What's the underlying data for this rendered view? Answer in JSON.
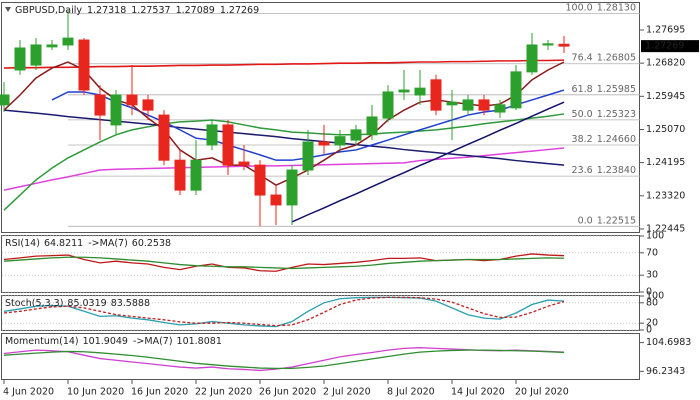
{
  "chart_data": [
    {
      "type": "candlestick",
      "title": "GBPUSD,Daily",
      "categories": [
        "4 Jun 2020",
        null,
        null,
        null,
        "10 Jun 2020",
        null,
        null,
        null,
        "16 Jun 2020",
        null,
        null,
        null,
        "22 Jun 2020",
        null,
        null,
        null,
        "26 Jun 2020",
        null,
        null,
        null,
        "2 Jul 2020",
        null,
        null,
        null,
        "8 Jul 2020",
        null,
        null,
        null,
        "14 Jul 2020",
        null,
        null,
        null,
        "20 Jul 2020",
        null,
        null,
        null
      ],
      "open": [
        1.2572,
        1.2664,
        1.2677,
        1.2725,
        1.273,
        1.2743,
        1.2598,
        1.2519,
        1.2598,
        1.2585,
        1.2545,
        1.2426,
        1.2347,
        1.2466,
        1.2519,
        1.2421,
        1.2413,
        1.2334,
        1.2308,
        1.24,
        1.2474,
        1.2466,
        1.2479,
        1.2493,
        1.2537,
        1.2606,
        1.2598,
        1.2638,
        1.2572,
        1.2558,
        1.2585,
        1.2553,
        1.2564,
        1.2659,
        1.273,
        1.27318
      ],
      "high": [
        1.2632,
        1.2743,
        1.2748,
        1.2743,
        1.2822,
        1.2748,
        1.2624,
        1.2611,
        1.2677,
        1.2598,
        1.2558,
        1.2453,
        1.2479,
        1.2532,
        1.2532,
        1.2466,
        1.2426,
        1.236,
        1.2413,
        1.2506,
        1.2519,
        1.2506,
        1.2519,
        1.2572,
        1.2624,
        1.2664,
        1.2664,
        1.2651,
        1.2611,
        1.2598,
        1.2598,
        1.2585,
        1.2677,
        1.2762,
        1.2743,
        1.27537
      ],
      "low": [
        1.2553,
        1.2651,
        1.2664,
        1.2717,
        1.2717,
        1.2598,
        1.2479,
        1.2493,
        1.2545,
        1.2532,
        1.2413,
        1.2334,
        1.2334,
        1.2453,
        1.2387,
        1.24,
        1.2252,
        1.2255,
        1.2255,
        1.2387,
        1.244,
        1.2453,
        1.2466,
        1.2479,
        1.2527,
        1.2585,
        1.2572,
        1.2545,
        1.2479,
        1.2545,
        1.2545,
        1.2537,
        1.2558,
        1.2651,
        1.2717,
        1.27089
      ],
      "close": [
        1.2598,
        1.2722,
        1.273,
        1.273,
        1.2748,
        1.2611,
        1.2545,
        1.2598,
        1.2572,
        1.2558,
        1.2426,
        1.2347,
        1.2426,
        1.2519,
        1.2413,
        1.2413,
        1.2334,
        1.2308,
        1.24,
        1.2474,
        1.2466,
        1.2488,
        1.2506,
        1.254,
        1.2606,
        1.2611,
        1.2616,
        1.2558,
        1.2579,
        1.2585,
        1.2558,
        1.2572,
        1.2659,
        1.273,
        1.2733,
        1.27269
      ],
      "up_color": "#2ca02c",
      "down_color": "#e8261e",
      "ylim": [
        1.22365,
        1.28407
      ],
      "yticks": [
        1.27695,
        {
          "value": 1.2682,
          "label": "1.26820"
        },
        1.25945,
        {
          "value": 1.2507,
          "label": "1.25070"
        },
        1.24195,
        {
          "value": 1.2332,
          "label": "1.23320"
        },
        1.22445
      ],
      "fib_levels": [
        {
          "ratio": "100.0",
          "price": {
            "value": 1.2813,
            "label": "1.28130"
          }
        },
        {
          "ratio": "76.4",
          "price": 1.26805
        },
        {
          "ratio": "61.8",
          "price": 1.25985
        },
        {
          "ratio": "50.0",
          "price": 1.25323
        },
        {
          "ratio": "38.2",
          "price": {
            "value": 1.2466,
            "label": "1.24660"
          }
        },
        {
          "ratio": "23.6",
          "price": {
            "value": 1.2384,
            "label": "1.23840"
          }
        },
        {
          "ratio": "0.0",
          "price": 1.22515
        }
      ],
      "series": [
        {
          "color": "#e01818",
          "values": [
            1.2669,
            1.267,
            1.267,
            1.2671,
            1.2671,
            1.2672,
            1.2673,
            1.2673,
            1.2674,
            1.2674,
            1.2675,
            1.2676,
            1.2676,
            1.2677,
            1.2677,
            1.2678,
            1.2679,
            1.2679,
            1.268,
            1.268,
            1.2681,
            1.2682,
            1.2682,
            1.2683,
            1.2683,
            1.2684,
            1.2685,
            1.2685,
            1.2686,
            1.2686,
            1.2687,
            1.2688,
            1.2688,
            1.2689,
            1.2689,
            1.269
          ]
        },
        {
          "color": "#e040e0",
          "values": [
            1.2347,
            1.2356,
            1.2365,
            1.2374,
            1.2382,
            1.2391,
            1.24,
            1.2402,
            1.2403,
            1.2404,
            1.2405,
            1.2406,
            1.2407,
            1.2408,
            1.2409,
            1.241,
            1.2411,
            1.2411,
            1.2412,
            1.2413,
            1.2414,
            1.2415,
            1.2416,
            1.2417,
            1.2418,
            1.2419,
            1.2425,
            1.2428,
            1.2431,
            1.2434,
            1.2438,
            1.2442,
            1.2446,
            1.245,
            1.2454,
            1.2458
          ]
        },
        {
          "color": "#2f9a3a",
          "values": [
            1.2294,
            1.2334,
            1.2374,
            1.2405,
            1.2432,
            1.2453,
            1.2474,
            1.2493,
            1.2506,
            1.2514,
            1.2522,
            1.2527,
            1.2529,
            1.2532,
            1.2527,
            1.2519,
            1.2511,
            1.2506,
            1.25,
            1.2498,
            1.2495,
            1.2493,
            1.2493,
            1.2495,
            1.2498,
            1.25,
            1.2503,
            1.2506,
            1.2511,
            1.2516,
            1.2522,
            1.2527,
            1.2532,
            1.2537,
            1.2542,
            1.2548
          ]
        },
        {
          "color": "#1a1a6e",
          "values": [
            1.2558,
            1.2554,
            1.255,
            1.2546,
            1.2541,
            1.2537,
            1.2533,
            1.2529,
            1.2525,
            1.2521,
            1.2517,
            1.2512,
            1.2508,
            1.2504,
            1.25,
            1.2496,
            1.2492,
            1.2488,
            1.2483,
            1.2479,
            1.2475,
            1.2471,
            1.2467,
            1.2463,
            1.2459,
            1.2454,
            1.245,
            1.2446,
            1.2442,
            1.2438,
            1.2434,
            1.243,
            1.2425,
            1.2421,
            1.2417,
            1.2413
          ]
        },
        {
          "color": "#1f3fd0",
          "values": [
            null,
            null,
            null,
            1.2585,
            1.2606,
            1.2606,
            1.2598,
            1.2579,
            1.2564,
            1.2545,
            1.2527,
            1.2506,
            1.2484,
            1.2479,
            1.2466,
            1.2453,
            1.244,
            1.2426,
            1.2426,
            1.2432,
            1.244,
            1.2448,
            1.2453,
            1.2466,
            1.2479,
            1.2493,
            1.2506,
            1.2519,
            1.2532,
            1.2545,
            1.2553,
            1.2558,
            1.2572,
            1.2585,
            1.2598,
            1.2611
          ]
        },
        {
          "color": "#8b1a1a",
          "values": [
            1.2558,
            1.2598,
            1.2643,
            1.2669,
            1.2685,
            1.2664,
            1.2616,
            1.2585,
            1.2572,
            1.2537,
            1.2506,
            1.2453,
            1.2426,
            1.2432,
            1.2413,
            1.2413,
            1.2387,
            1.236,
            1.2379,
            1.24,
            1.2426,
            1.2453,
            1.2466,
            1.2493,
            1.2532,
            1.2558,
            1.2579,
            1.2585,
            1.2579,
            1.2574,
            1.2569,
            1.2574,
            1.2598,
            1.2638,
            1.2664,
            1.2685
          ]
        },
        {
          "color": "#10106a",
          "values": [
            null,
            null,
            null,
            null,
            null,
            null,
            null,
            null,
            null,
            null,
            null,
            null,
            null,
            null,
            null,
            null,
            null,
            null,
            1.2263,
            1.2282,
            1.23,
            1.2319,
            1.2337,
            1.2356,
            1.2375,
            1.2393,
            1.2412,
            1.243,
            1.2449,
            1.2468,
            1.2486,
            1.2505,
            1.2523,
            1.2542,
            1.2561,
            1.2579
          ]
        }
      ]
    },
    {
      "type": "line",
      "ylim": [
        0,
        100
      ],
      "yticks": [
        0,
        30,
        70,
        100
      ],
      "grid": true,
      "series": [
        {
          "name": "RSI(14)",
          "color": "#c01818",
          "values": [
            58,
            61,
            64,
            65,
            66,
            58,
            52,
            55,
            52,
            50,
            44,
            40,
            46,
            50,
            44,
            43,
            38,
            37,
            44,
            50,
            49,
            51,
            53,
            56,
            60,
            60,
            61,
            56,
            57,
            58,
            56,
            58,
            64,
            68,
            66,
            64.8211
          ]
        },
        {
          "name": "->MA(7)",
          "color": "#2e8b2e",
          "values": [
            55,
            57,
            59,
            61,
            62,
            62,
            61,
            59,
            57,
            55,
            52,
            49,
            47,
            46,
            45,
            45,
            44,
            43,
            42,
            43,
            44,
            45,
            46,
            48,
            51,
            53,
            55,
            56,
            57,
            58,
            58,
            58,
            59,
            60,
            61,
            60.2538
          ]
        }
      ]
    },
    {
      "type": "line",
      "ylim": [
        0,
        100
      ],
      "yticks": [
        0,
        20,
        80,
        100
      ],
      "grid": true,
      "series": [
        {
          "name": "Stoch(5,3,3)",
          "color": "#2a9fb0",
          "values": [
            55,
            62,
            70,
            72,
            70,
            55,
            40,
            42,
            35,
            30,
            22,
            15,
            18,
            25,
            20,
            15,
            12,
            10,
            25,
            55,
            80,
            92,
            95,
            96,
            96,
            95,
            94,
            85,
            65,
            45,
            35,
            32,
            50,
            75,
            88,
            85.0319
          ]
        },
        {
          "color": "#c02020",
          "dash": true,
          "values": [
            50,
            55,
            62,
            68,
            70,
            65,
            55,
            45,
            40,
            35,
            30,
            24,
            20,
            20,
            22,
            20,
            16,
            13,
            15,
            30,
            52,
            75,
            88,
            94,
            96,
            96,
            95,
            91,
            82,
            65,
            48,
            37,
            38,
            52,
            70,
            83.5888
          ]
        }
      ]
    },
    {
      "type": "line",
      "ylim": [
        93.98,
        107.24
      ],
      "yticks": [
        96.2343,
        104.6983
      ],
      "grid": false,
      "series": [
        {
          "name": "Momentum(14)",
          "color": "#d040d0",
          "values": [
            101.5,
            102.0,
            102.5,
            102.3,
            102.0,
            101.0,
            100.0,
            99.5,
            99.0,
            98.5,
            98.0,
            97.5,
            97.2,
            97.5,
            97.0,
            96.8,
            96.5,
            96.9,
            97.5,
            98.5,
            99.5,
            100.5,
            101.2,
            101.8,
            102.5,
            103.0,
            103.2,
            103.0,
            102.8,
            102.6,
            102.4,
            102.3,
            102.5,
            102.3,
            102.1,
            101.9049
          ]
        },
        {
          "name": "->MA(7)",
          "color": "#2f8f2f",
          "values": [
            101.0,
            101.3,
            101.6,
            101.9,
            102.1,
            102.0,
            101.7,
            101.3,
            100.9,
            100.4,
            99.8,
            99.2,
            98.6,
            98.2,
            97.8,
            97.5,
            97.2,
            97.1,
            97.1,
            97.4,
            97.8,
            98.5,
            99.2,
            99.9,
            100.6,
            101.3,
            101.9,
            102.2,
            102.4,
            102.5,
            102.5,
            102.4,
            102.3,
            102.2,
            102.0,
            101.8081
          ]
        }
      ]
    }
  ]
}
